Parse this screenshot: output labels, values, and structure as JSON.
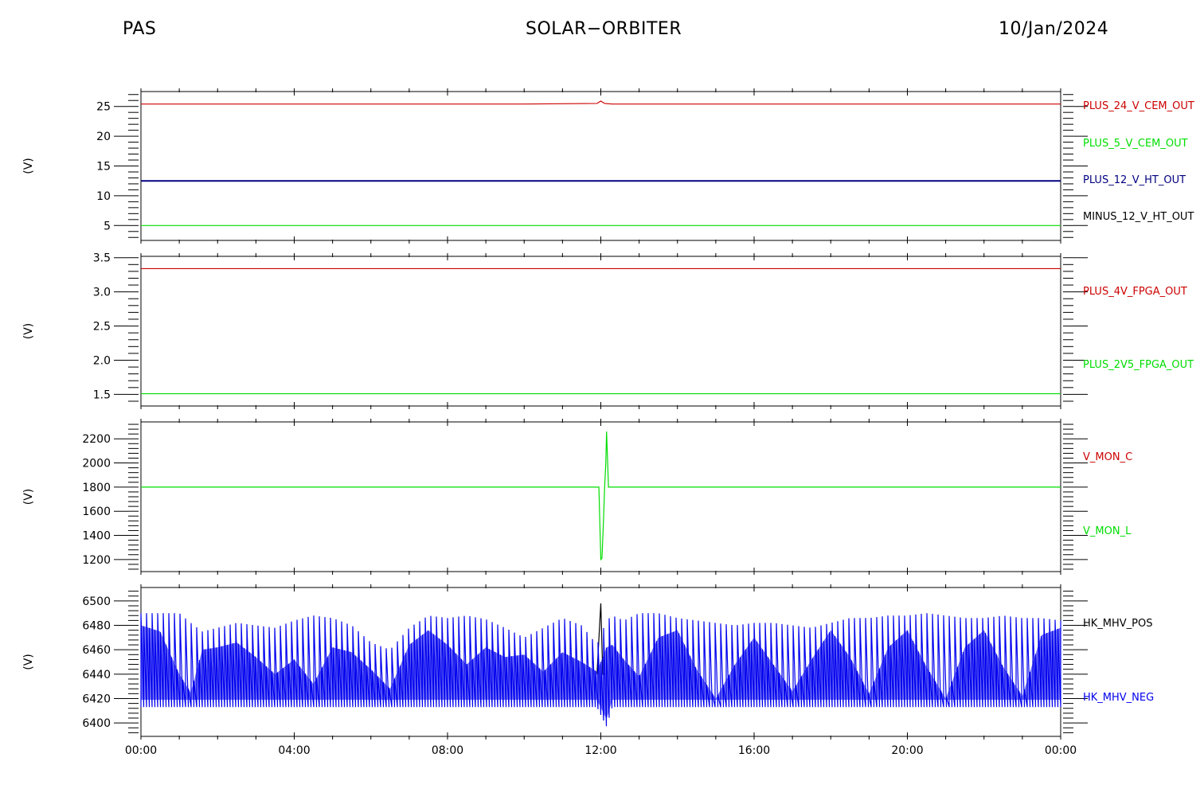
{
  "header": {
    "left": "PAS",
    "center": "SOLAR−ORBITER",
    "right": "10/Jan/2024"
  },
  "chart_data": [
    {
      "type": "line",
      "ylabel": "(V)",
      "ylim": [
        2.5,
        27.5
      ],
      "yticks": [
        5,
        10,
        15,
        20,
        25
      ],
      "ytick_labels": [
        "5",
        "10",
        "15",
        "20",
        "25"
      ],
      "xlim": [
        0,
        24
      ],
      "series": [
        {
          "name": "PLUS_24_V_CEM_OUT",
          "color": "#cc0000",
          "x": [
            0,
            2,
            4,
            6,
            8,
            10,
            11.9,
            12.0,
            12.1,
            12.3,
            14,
            16,
            18,
            20,
            22,
            24
          ],
          "y": [
            25.4,
            25.4,
            25.4,
            25.4,
            25.4,
            25.4,
            25.5,
            25.9,
            25.5,
            25.4,
            25.4,
            25.4,
            25.4,
            25.4,
            25.4,
            25.4
          ]
        },
        {
          "name": "PLUS_5_V_CEM_OUT",
          "color": "#00dd00",
          "x": [
            0,
            24
          ],
          "y": [
            5.0,
            5.0
          ]
        },
        {
          "name": "PLUS_12_V_HT_OUT",
          "color": "#000080",
          "x": [
            0,
            24
          ],
          "y": [
            12.5,
            12.5
          ]
        },
        {
          "name": "MINUS_12_V_HT_OUT",
          "color": "#000000",
          "x": [],
          "y": []
        }
      ]
    },
    {
      "type": "line",
      "ylabel": "(V)",
      "ylim": [
        1.33,
        3.52
      ],
      "yticks": [
        1.5,
        2.0,
        2.5,
        3.0,
        3.5
      ],
      "ytick_labels": [
        "1.5",
        "2.0",
        "2.5",
        "3.0",
        "3.5"
      ],
      "xlim": [
        0,
        24
      ],
      "series": [
        {
          "name": "PLUS_4V_FPGA_OUT",
          "color": "#cc0000",
          "x": [
            0,
            24
          ],
          "y": [
            3.34,
            3.34
          ]
        },
        {
          "name": "PLUS_2V5_FPGA_OUT",
          "color": "#00dd00",
          "x": [
            0,
            24
          ],
          "y": [
            1.51,
            1.51
          ]
        }
      ]
    },
    {
      "type": "line",
      "ylabel": "(V)",
      "ylim": [
        1100,
        2340
      ],
      "yticks": [
        1200,
        1400,
        1600,
        1800,
        2000,
        2200
      ],
      "ytick_labels": [
        "1200",
        "1400",
        "1600",
        "1800",
        "2000",
        "2200"
      ],
      "xlim": [
        0,
        24
      ],
      "series": [
        {
          "name": "V_MON_C",
          "color": "#cc0000",
          "x": [],
          "y": []
        },
        {
          "name": "V_MON_L",
          "color": "#00dd00",
          "x": [
            0,
            11.95,
            12.0,
            12.03,
            12.07,
            12.1,
            12.13,
            12.15,
            12.18,
            12.2,
            24
          ],
          "y": [
            1800,
            1800,
            1200,
            1210,
            1520,
            1800,
            2000,
            2260,
            1990,
            1800,
            1800
          ]
        }
      ]
    },
    {
      "type": "line",
      "ylabel": "(V)",
      "ylim": [
        6389,
        6511
      ],
      "yticks": [
        6400,
        6420,
        6440,
        6460,
        6480,
        6500
      ],
      "ytick_labels": [
        "6400",
        "6420",
        "6440",
        "6460",
        "6480",
        "6500"
      ],
      "xlim": [
        0,
        24
      ],
      "xticks": [
        0,
        4,
        8,
        12,
        16,
        20,
        24
      ],
      "xtick_labels": [
        "00:00",
        "04:00",
        "08:00",
        "12:00",
        "16:00",
        "20:00",
        "00:00"
      ],
      "series": [
        {
          "name": "HK_MHV_POS",
          "color": "#000000",
          "x": [
            11.9,
            12.0,
            12.05,
            12.1
          ],
          "y": [
            6440,
            6498,
            6440,
            6440
          ]
        },
        {
          "name": "HK_MHV_NEG",
          "color": "#0000ee",
          "x": [
            0,
            0.5,
            1.0,
            1.3,
            1.6,
            2.0,
            2.5,
            3.0,
            3.5,
            4.0,
            4.5,
            5.0,
            5.5,
            6.0,
            6.5,
            7.0,
            7.5,
            8.0,
            8.5,
            9.0,
            9.5,
            10.0,
            10.5,
            11.0,
            11.5,
            11.9,
            12.15,
            12.3,
            12.6,
            13.0,
            13.5,
            14.0,
            14.5,
            15.0,
            15.5,
            16.0,
            16.5,
            17.0,
            17.5,
            18.0,
            18.5,
            19.0,
            19.5,
            20.0,
            20.5,
            21.0,
            21.5,
            22.0,
            22.5,
            23.0,
            23.5,
            24.0
          ],
          "y_max": [
            6490,
            6490,
            6490,
            6482,
            6475,
            6478,
            6482,
            6480,
            6478,
            6484,
            6488,
            6486,
            6480,
            6466,
            6460,
            6478,
            6488,
            6486,
            6488,
            6485,
            6478,
            6470,
            6478,
            6486,
            6480,
            6464,
            6484,
            6488,
            6484,
            6490,
            6490,
            6486,
            6484,
            6482,
            6480,
            6482,
            6482,
            6480,
            6478,
            6482,
            6486,
            6486,
            6488,
            6488,
            6490,
            6488,
            6486,
            6486,
            6488,
            6486,
            6486,
            6484
          ],
          "y_min": [
            6413,
            6413,
            6413,
            6413,
            6413,
            6413,
            6413,
            6413,
            6413,
            6413,
            6413,
            6413,
            6413,
            6413,
            6413,
            6413,
            6413,
            6413,
            6413,
            6413,
            6413,
            6413,
            6413,
            6413,
            6413,
            6413,
            6397,
            6413,
            6413,
            6413,
            6413,
            6413,
            6413,
            6413,
            6413,
            6413,
            6413,
            6413,
            6413,
            6413,
            6413,
            6413,
            6413,
            6413,
            6413,
            6413,
            6413,
            6413,
            6413,
            6413,
            6413,
            6413
          ],
          "y_inner": [
            6480,
            6475,
            6440,
            6425,
            6460,
            6462,
            6466,
            6454,
            6440,
            6452,
            6432,
            6462,
            6458,
            6444,
            6428,
            6464,
            6476,
            6464,
            6448,
            6462,
            6454,
            6456,
            6442,
            6458,
            6450,
            6442,
            6462,
            6464,
            6452,
            6438,
            6470,
            6476,
            6444,
            6420,
            6448,
            6470,
            6448,
            6426,
            6452,
            6476,
            6454,
            6424,
            6462,
            6476,
            6446,
            6420,
            6462,
            6476,
            6446,
            6422,
            6472,
            6478
          ]
        }
      ]
    }
  ]
}
